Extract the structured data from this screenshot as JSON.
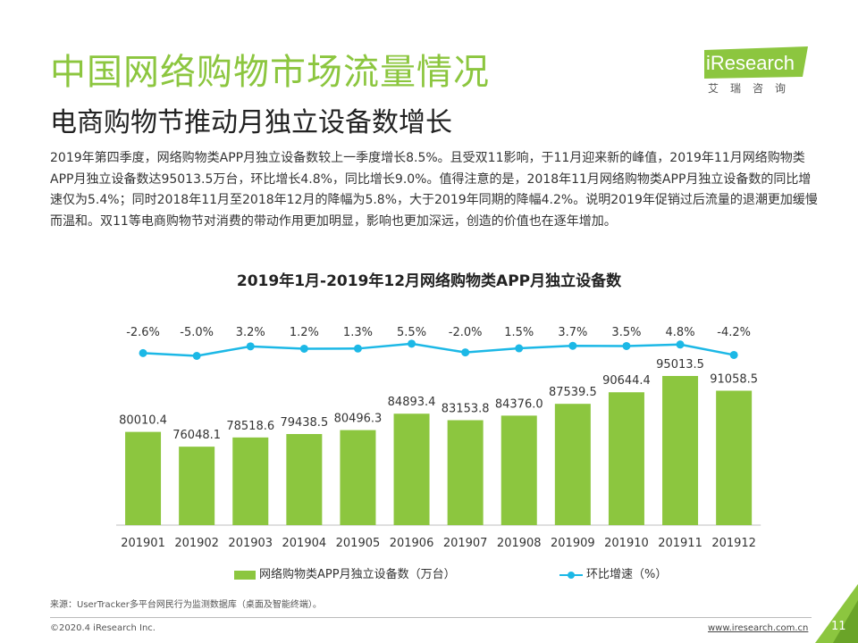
{
  "header": {
    "title": "中国网络购物市场流量情况",
    "subtitle": "电商购物节推动月独立设备数增长"
  },
  "logo": {
    "text": "iResearch",
    "cn": "艾瑞咨询",
    "color": "#8cc63f"
  },
  "paragraph": "2019年第四季度，网络购物类APP月独立设备数较上一季度增长8.5%。且受双11影响，于11月迎来新的峰值，2019年11月网络购物类APP月独立设备数达95013.5万台，环比增长4.8%，同比增长9.0%。值得注意的是，2018年11月网络购物类APP月独立设备数的同比增速仅为5.4%；同时2018年11月至2018年12月的降幅为5.8%，大于2019年同期的降幅4.2%。说明2019年促销过后流量的退潮更加缓慢而温和。双11等电商购物节对消费的带动作用更加明显，影响也更加深远，创造的价值也在逐年增加。",
  "chart_data": {
    "type": "bar",
    "title": "2019年1月-2019年12月网络购物类APP月独立设备数",
    "categories": [
      "201901",
      "201902",
      "201903",
      "201904",
      "201905",
      "201906",
      "201907",
      "201908",
      "201909",
      "201910",
      "201911",
      "201912"
    ],
    "series": [
      {
        "name": "网络购物类APP月独立设备数（万台）",
        "type": "bar",
        "color": "#8cc63f",
        "values": [
          80010.4,
          76048.1,
          78518.6,
          79438.5,
          80496.3,
          84893.4,
          83153.8,
          84376.0,
          87539.5,
          90644.4,
          95013.5,
          91058.5
        ],
        "labels": [
          "80010.4",
          "76048.1",
          "78518.6",
          "79438.5",
          "80496.3",
          "84893.4",
          "83153.8",
          "84376.0",
          "87539.5",
          "90644.4",
          "95013.5",
          "91058.5"
        ]
      },
      {
        "name": "环比增速（%）",
        "type": "line",
        "color": "#1cb8e6",
        "values": [
          -2.6,
          -5.0,
          3.2,
          1.2,
          1.3,
          5.5,
          -2.0,
          1.5,
          3.7,
          3.5,
          4.8,
          -4.2
        ],
        "labels": [
          "-2.6%",
          "-5.0%",
          "3.2%",
          "1.2%",
          "1.3%",
          "5.5%",
          "-2.0%",
          "1.5%",
          "3.7%",
          "3.5%",
          "4.8%",
          "-4.2%"
        ]
      }
    ],
    "legend_position": "bottom",
    "grid": false
  },
  "legend": {
    "bar_label": "网络购物类APP月独立设备数（万台）",
    "line_label": "环比增速（%）"
  },
  "footer": {
    "source": "来源：UserTracker多平台网民行为监测数据库（桌面及智能终端）。",
    "copyright": "©2020.4 iResearch Inc.",
    "site": "www.iresearch.com.cn",
    "page": "11"
  }
}
